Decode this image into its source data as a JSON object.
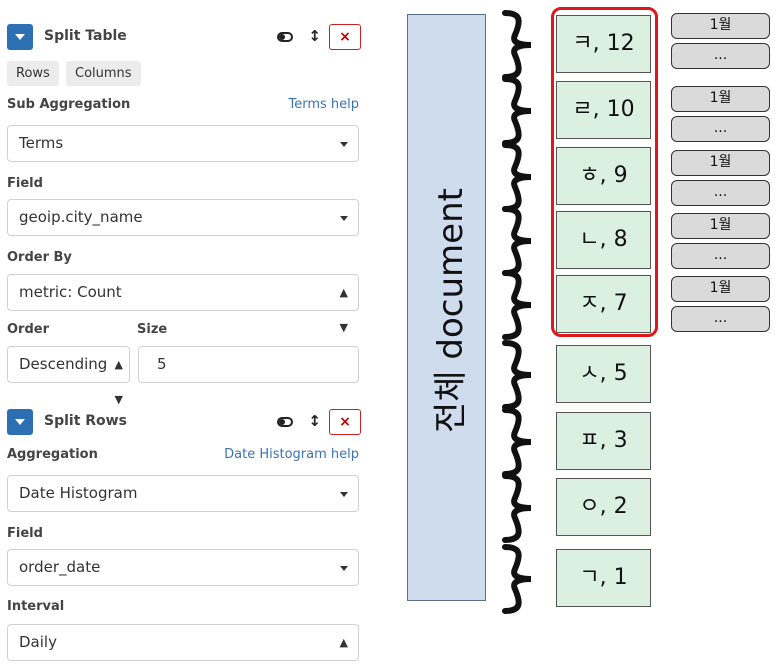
{
  "split_table": {
    "title": "Split Table",
    "tabs": [
      "Rows",
      "Columns"
    ],
    "sub_aggregation_label": "Sub Aggregation",
    "help_link": "Terms help",
    "aggregation_value": "Terms",
    "field_label": "Field",
    "field_value": "geoip.city_name",
    "order_by_label": "Order By",
    "order_by_value": "metric: Count",
    "order_label": "Order",
    "order_value": "Descending",
    "size_label": "Size",
    "size_value": "5"
  },
  "split_rows": {
    "title": "Split Rows",
    "aggregation_label": "Aggregation",
    "help_link": "Date Histogram help",
    "aggregation_value": "Date Histogram",
    "field_label": "Field",
    "field_value": "order_date",
    "interval_label": "Interval",
    "interval_value": "Daily"
  },
  "diagram": {
    "document_label": "전체 document",
    "terms": [
      "ㅋ, 12",
      "ㄹ, 10",
      "ㅎ, 9",
      "ㄴ, 8",
      "ㅈ, 7",
      "ㅅ, 5",
      "ㅍ, 3",
      "ㅇ, 2",
      "ㄱ, 1"
    ],
    "sub_buckets": [
      [
        "1월",
        "..."
      ],
      [
        "1월",
        "..."
      ],
      [
        "1월",
        "..."
      ],
      [
        "1월",
        "..."
      ],
      [
        "1월",
        "..."
      ]
    ],
    "colors": {
      "document_bar": "#cfdcee",
      "term_box": "#dcf0e2",
      "highlight": "#e0161b",
      "sub_box": "#dadada"
    }
  }
}
